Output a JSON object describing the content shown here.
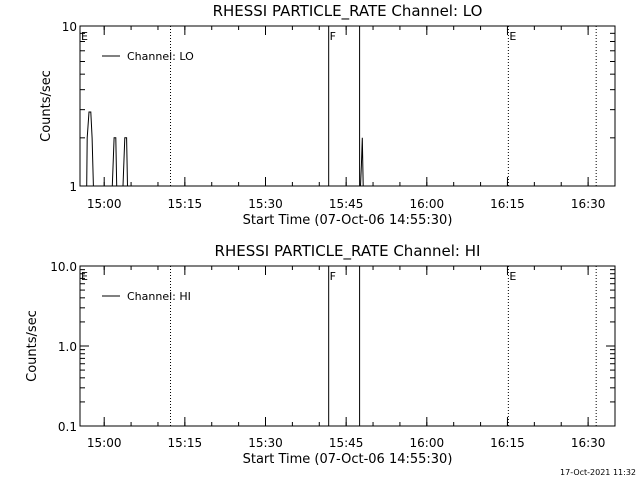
{
  "chart_data": [
    {
      "type": "line",
      "title": "RHESSI PARTICLE_RATE Channel: LO",
      "xlabel": "Start Time (07-Oct-06 14:55:30)",
      "ylabel": "Counts/sec",
      "scale_y": "log",
      "ylim": [
        1,
        10
      ],
      "y_ticks": [
        1,
        10
      ],
      "y_tick_labels": [
        "1",
        "10"
      ],
      "xlim": [
        "14:55:30",
        "16:35:00"
      ],
      "x_ticks": [
        "15:00",
        "15:15",
        "15:30",
        "15:45",
        "16:00",
        "16:15",
        "16:30"
      ],
      "legend": {
        "position": "top-left",
        "entries": [
          "Channel: LO"
        ]
      },
      "series": [
        {
          "name": "Channel: LO",
          "x": [
            "14:56:30",
            "14:56:45",
            "14:56:50",
            "14:57:10",
            "14:57:30",
            "14:57:45",
            "14:58:00",
            "14:58:15",
            "15:01:30",
            "15:01:50",
            "15:02:10",
            "15:02:20",
            "15:02:40",
            "15:03:30",
            "15:03:50",
            "15:04:10",
            "15:04:20",
            "15:04:40",
            "15:47:40",
            "15:47:50",
            "15:48:00",
            "15:48:10",
            "15:48:30"
          ],
          "y": [
            1,
            1,
            2,
            2.9,
            2.9,
            2,
            1,
            1,
            1,
            2,
            2,
            1,
            1,
            1,
            2,
            2,
            1,
            1,
            1,
            1.35,
            2,
            1,
            1
          ]
        }
      ],
      "markers": [
        {
          "label": "E",
          "time": "14:55:30",
          "style": "dotted"
        },
        {
          "label": "",
          "time": "15:12:20",
          "style": "dotted"
        },
        {
          "label": "F",
          "time": "15:41:45",
          "style": "solid"
        },
        {
          "label": "",
          "time": "15:47:30",
          "style": "solid"
        },
        {
          "label": "E",
          "time": "16:15:10",
          "style": "dotted"
        },
        {
          "label": "",
          "time": "16:31:30",
          "style": "dotted"
        }
      ]
    },
    {
      "type": "line",
      "title": "RHESSI PARTICLE_RATE Channel: HI",
      "xlabel": "Start Time (07-Oct-06 14:55:30)",
      "ylabel": "Counts/sec",
      "scale_y": "log",
      "ylim": [
        0.1,
        10
      ],
      "y_ticks": [
        0.1,
        1,
        10
      ],
      "y_tick_labels": [
        "0.1",
        "1.0",
        "10.0"
      ],
      "xlim": [
        "14:55:30",
        "16:35:00"
      ],
      "x_ticks": [
        "15:00",
        "15:15",
        "15:30",
        "15:45",
        "16:00",
        "16:15",
        "16:30"
      ],
      "legend": {
        "position": "top-left",
        "entries": [
          "Channel: HI"
        ]
      },
      "series": [
        {
          "name": "Channel: HI",
          "x": [],
          "y": []
        }
      ],
      "markers": [
        {
          "label": "E",
          "time": "14:55:30",
          "style": "dotted"
        },
        {
          "label": "",
          "time": "15:12:20",
          "style": "dotted"
        },
        {
          "label": "F",
          "time": "15:41:45",
          "style": "solid"
        },
        {
          "label": "",
          "time": "15:47:30",
          "style": "solid"
        },
        {
          "label": "E",
          "time": "16:15:10",
          "style": "dotted"
        },
        {
          "label": "",
          "time": "16:31:30",
          "style": "dotted"
        }
      ]
    }
  ],
  "footer": {
    "timestamp": "17-Oct-2021 11:32"
  }
}
